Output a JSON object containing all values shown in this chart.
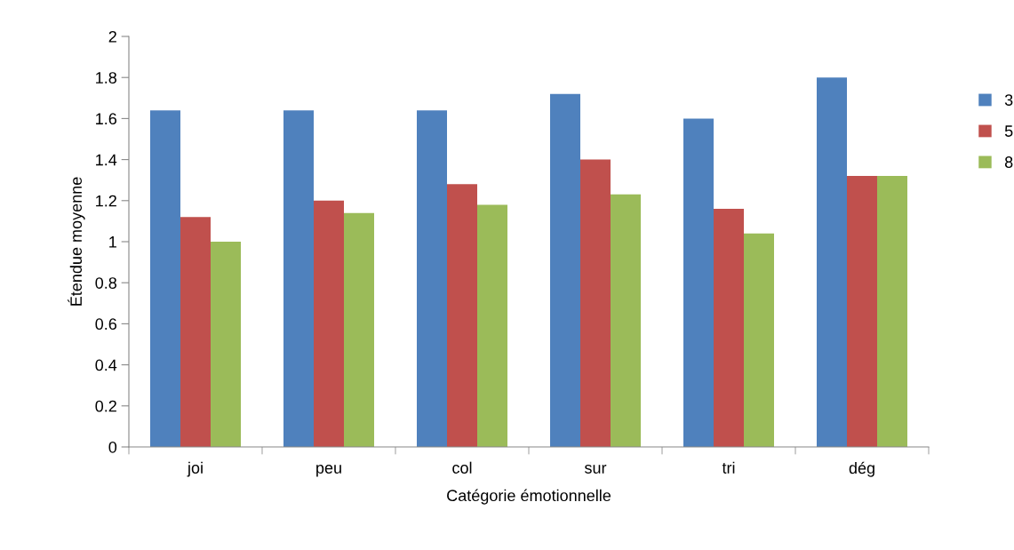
{
  "chart_data": {
    "type": "bar",
    "xlabel": "Catégorie émotionnelle",
    "ylabel": "Étendue moyenne",
    "categories": [
      "joi",
      "peu",
      "col",
      "sur",
      "tri",
      "dég"
    ],
    "series": [
      {
        "name": "3",
        "color": "#4f81bd",
        "values": [
          1.64,
          1.64,
          1.64,
          1.72,
          1.6,
          1.8
        ]
      },
      {
        "name": "5",
        "color": "#c0504d",
        "values": [
          1.12,
          1.2,
          1.28,
          1.4,
          1.16,
          1.32
        ]
      },
      {
        "name": "8",
        "color": "#9bbb59",
        "values": [
          1.0,
          1.14,
          1.18,
          1.23,
          1.04,
          1.32
        ]
      }
    ],
    "ylim": [
      0,
      2
    ],
    "yticks": [
      0,
      0.2,
      0.4,
      0.6,
      0.8,
      1,
      1.2,
      1.4,
      1.6,
      1.8,
      2
    ],
    "grid": false,
    "legend": "right"
  }
}
